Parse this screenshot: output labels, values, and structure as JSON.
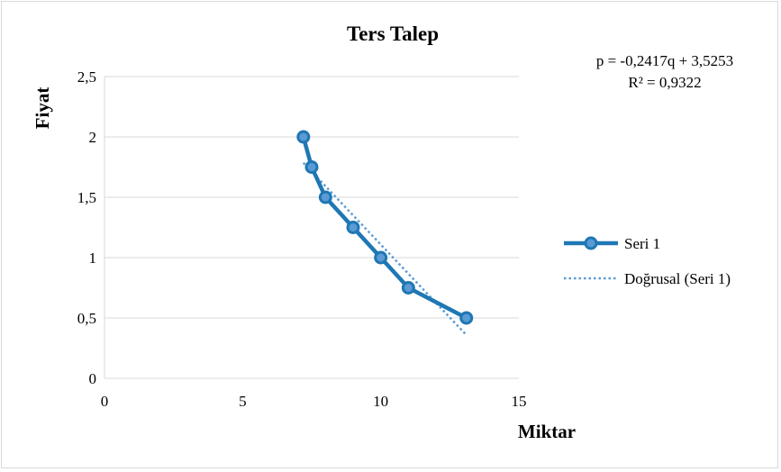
{
  "chart_data": {
    "type": "scatter",
    "title": "Ters Talep",
    "xlabel": "Miktar",
    "ylabel": "Fiyat",
    "xlim": [
      0,
      15
    ],
    "ylim": [
      0,
      2.5
    ],
    "x_ticks": [
      0,
      5,
      10,
      15
    ],
    "y_ticks": [
      0,
      0.5,
      1,
      1.5,
      2,
      2.5
    ],
    "x_tick_labels": [
      "0",
      "5",
      "10",
      "15"
    ],
    "y_tick_labels": [
      "0",
      "0,5",
      "1",
      "1,5",
      "2",
      "2,5"
    ],
    "grid": "horizontal",
    "legend_position": "right",
    "series": [
      {
        "name": "Seri 1",
        "color": "#1f77b4",
        "x": [
          7.2,
          7.5,
          8,
          9,
          10,
          11,
          13.1
        ],
        "y": [
          2,
          1.75,
          1.5,
          1.25,
          1,
          0.75,
          0.5
        ]
      }
    ],
    "trendline": {
      "name": "Doğrusal (Seri 1)",
      "color": "#5b9bd5",
      "slope": -0.2417,
      "intercept": 3.5253,
      "x_range": [
        7.2,
        13.1
      ]
    },
    "annotations": {
      "equation": "p = -0,2417q + 3,5253",
      "r_squared": "R² = 0,9322"
    }
  }
}
